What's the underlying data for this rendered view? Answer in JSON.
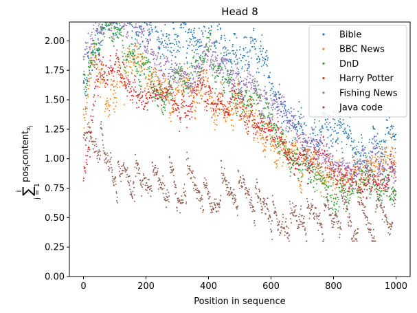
{
  "chart_data": {
    "type": "scatter",
    "title": "Head 8",
    "xlabel": "Position in sequence",
    "ylabel": "Σ_{j=1}^{i} pos_i content_{x_j}",
    "ylabel_parts": {
      "sum": "∑",
      "upper": "i",
      "lower": "j = 1",
      "main": "pos",
      "sub": "i",
      "main2": "content",
      "sub2": "x",
      "subsub": "j"
    },
    "xlim": [
      -45,
      1045
    ],
    "ylim": [
      0,
      2.16
    ],
    "xticks": [
      0,
      200,
      400,
      600,
      800,
      1000
    ],
    "yticks": [
      0.0,
      0.25,
      0.5,
      0.75,
      1.0,
      1.25,
      1.5,
      1.75,
      2.0
    ],
    "xtick_labels": [
      "0",
      "200",
      "400",
      "600",
      "800",
      "1000"
    ],
    "ytick_labels": [
      "0.00",
      "0.25",
      "0.50",
      "0.75",
      "1.00",
      "1.25",
      "1.50",
      "1.75",
      "2.00"
    ],
    "legend_position": "top-right",
    "n_points": 1000,
    "series": [
      {
        "name": "Bible",
        "color": "#1f77b4",
        "trend": [
          [
            0,
            1.6
          ],
          [
            40,
            2.05
          ],
          [
            100,
            2.2
          ],
          [
            200,
            2.1
          ],
          [
            300,
            2.0
          ],
          [
            400,
            2.1
          ],
          [
            500,
            1.95
          ],
          [
            560,
            1.8
          ],
          [
            620,
            1.5
          ],
          [
            700,
            1.25
          ],
          [
            760,
            1.05
          ],
          [
            820,
            1.2
          ],
          [
            900,
            1.05
          ],
          [
            960,
            1.15
          ],
          [
            1000,
            1.15
          ]
        ],
        "noise": 0.13
      },
      {
        "name": "BBC News",
        "color": "#ff7f0e",
        "trend": [
          [
            0,
            1.4
          ],
          [
            40,
            1.9
          ],
          [
            100,
            1.55
          ],
          [
            150,
            1.9
          ],
          [
            200,
            1.65
          ],
          [
            300,
            1.55
          ],
          [
            400,
            1.55
          ],
          [
            470,
            1.4
          ],
          [
            520,
            1.25
          ],
          [
            580,
            1.15
          ],
          [
            640,
            1.1
          ],
          [
            700,
            1.0
          ],
          [
            800,
            0.9
          ],
          [
            900,
            0.85
          ],
          [
            1000,
            0.98
          ]
        ],
        "noise": 0.11
      },
      {
        "name": "DnD",
        "color": "#2ca02c",
        "trend": [
          [
            0,
            1.7
          ],
          [
            60,
            2.1
          ],
          [
            140,
            1.9
          ],
          [
            200,
            1.6
          ],
          [
            260,
            1.5
          ],
          [
            340,
            1.7
          ],
          [
            400,
            1.9
          ],
          [
            480,
            1.65
          ],
          [
            560,
            1.4
          ],
          [
            620,
            1.15
          ],
          [
            680,
            1.0
          ],
          [
            740,
            0.85
          ],
          [
            800,
            0.8
          ],
          [
            900,
            0.78
          ],
          [
            1000,
            0.7
          ]
        ],
        "noise": 0.1
      },
      {
        "name": "Harry Potter",
        "color": "#d62728",
        "trend": [
          [
            0,
            0.85
          ],
          [
            50,
            1.65
          ],
          [
            110,
            1.85
          ],
          [
            170,
            1.45
          ],
          [
            230,
            1.55
          ],
          [
            300,
            1.45
          ],
          [
            370,
            1.6
          ],
          [
            430,
            1.45
          ],
          [
            500,
            1.4
          ],
          [
            560,
            1.3
          ],
          [
            620,
            1.2
          ],
          [
            680,
            1.0
          ],
          [
            760,
            1.05
          ],
          [
            820,
            0.88
          ],
          [
            900,
            0.78
          ],
          [
            1000,
            0.85
          ]
        ],
        "noise": 0.09
      },
      {
        "name": "Fishing News",
        "color": "#9467bd",
        "trend": [
          [
            0,
            1.8
          ],
          [
            60,
            2.15
          ],
          [
            140,
            2.1
          ],
          [
            200,
            1.95
          ],
          [
            260,
            1.8
          ],
          [
            330,
            1.7
          ],
          [
            400,
            1.9
          ],
          [
            460,
            1.8
          ],
          [
            520,
            1.65
          ],
          [
            580,
            1.55
          ],
          [
            640,
            1.4
          ],
          [
            700,
            1.15
          ],
          [
            780,
            1.0
          ],
          [
            850,
            0.92
          ],
          [
            950,
            0.9
          ],
          [
            1000,
            0.92
          ]
        ],
        "noise": 0.1
      },
      {
        "name": "Java code",
        "color": "#8c564b",
        "trend": [
          [
            0,
            1.1
          ],
          [
            40,
            1.2
          ],
          [
            80,
            1.0
          ],
          [
            120,
            0.85
          ],
          [
            200,
            0.85
          ],
          [
            300,
            0.75
          ],
          [
            400,
            0.7
          ],
          [
            500,
            0.65
          ],
          [
            600,
            0.58
          ],
          [
            680,
            0.45
          ],
          [
            740,
            0.52
          ],
          [
            800,
            0.5
          ],
          [
            860,
            0.45
          ],
          [
            940,
            0.5
          ],
          [
            1000,
            0.55
          ]
        ],
        "noise": 0.07
      }
    ]
  }
}
